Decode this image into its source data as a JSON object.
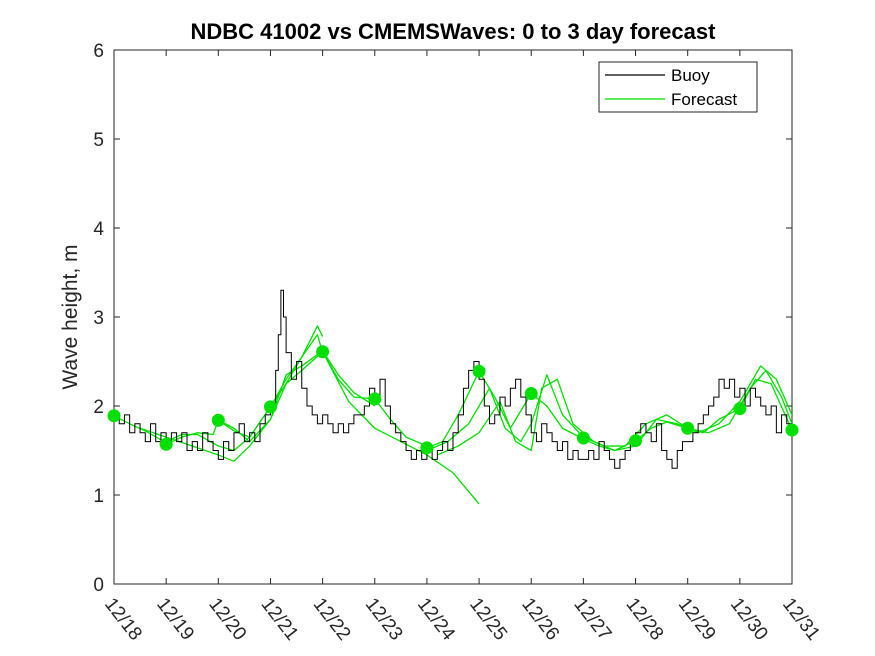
{
  "chart_data": {
    "type": "line",
    "title": "NDBC 41002 vs CMEMSWaves: 0 to 3 day forecast",
    "xlabel": "",
    "ylabel": "Wave height, m",
    "xlim": [
      0,
      13
    ],
    "ylim": [
      0,
      6
    ],
    "grid": false,
    "legend_position": "top-right",
    "x_tick_labels": [
      "12/18",
      "12/19",
      "12/20",
      "12/21",
      "12/22",
      "12/23",
      "12/24",
      "12/25",
      "12/26",
      "12/27",
      "12/28",
      "12/29",
      "12/30",
      "12/31"
    ],
    "y_ticks": [
      0,
      1,
      2,
      3,
      4,
      5,
      6
    ],
    "colors": {
      "buoy": "#000000",
      "forecast": "#00e000",
      "markers": "#00e000",
      "axes": "#262626"
    },
    "legend": [
      {
        "name": "Buoy",
        "color": "#000000"
      },
      {
        "name": "Forecast",
        "color": "#00e000"
      }
    ],
    "series": [
      {
        "name": "Buoy",
        "x": [
          0.0,
          0.1,
          0.2,
          0.3,
          0.4,
          0.5,
          0.6,
          0.7,
          0.8,
          0.9,
          1.0,
          1.1,
          1.2,
          1.3,
          1.4,
          1.5,
          1.6,
          1.7,
          1.8,
          1.9,
          2.0,
          2.1,
          2.2,
          2.3,
          2.4,
          2.5,
          2.6,
          2.7,
          2.8,
          2.9,
          3.0,
          3.1,
          3.15,
          3.2,
          3.25,
          3.3,
          3.4,
          3.5,
          3.6,
          3.7,
          3.8,
          3.9,
          4.0,
          4.1,
          4.2,
          4.3,
          4.4,
          4.5,
          4.6,
          4.7,
          4.8,
          4.9,
          5.0,
          5.1,
          5.2,
          5.3,
          5.4,
          5.5,
          5.6,
          5.7,
          5.8,
          5.9,
          6.0,
          6.1,
          6.2,
          6.3,
          6.4,
          6.5,
          6.6,
          6.7,
          6.8,
          6.9,
          7.0,
          7.1,
          7.2,
          7.3,
          7.4,
          7.5,
          7.6,
          7.7,
          7.8,
          7.9,
          8.0,
          8.1,
          8.2,
          8.3,
          8.4,
          8.5,
          8.6,
          8.7,
          8.8,
          8.9,
          9.0,
          9.1,
          9.2,
          9.3,
          9.4,
          9.5,
          9.6,
          9.7,
          9.8,
          9.9,
          10.0,
          10.1,
          10.2,
          10.3,
          10.4,
          10.5,
          10.6,
          10.7,
          10.8,
          10.9,
          11.0,
          11.1,
          11.2,
          11.3,
          11.4,
          11.5,
          11.6,
          11.7,
          11.8,
          11.9,
          12.0,
          12.1,
          12.2,
          12.3,
          12.4,
          12.5,
          12.6,
          12.7,
          12.8,
          12.9,
          13.0
        ],
        "values": [
          1.9,
          1.8,
          1.9,
          1.7,
          1.8,
          1.7,
          1.6,
          1.8,
          1.6,
          1.7,
          1.6,
          1.7,
          1.6,
          1.7,
          1.5,
          1.6,
          1.5,
          1.7,
          1.6,
          1.5,
          1.4,
          1.6,
          1.5,
          1.7,
          1.8,
          1.6,
          1.7,
          1.6,
          1.8,
          1.9,
          2.0,
          2.4,
          2.8,
          3.3,
          3.0,
          2.6,
          2.3,
          2.5,
          2.2,
          2.0,
          1.9,
          1.8,
          1.9,
          1.8,
          1.7,
          1.8,
          1.7,
          1.8,
          1.9,
          1.9,
          2.0,
          2.2,
          2.1,
          2.3,
          2.0,
          1.8,
          1.7,
          1.6,
          1.5,
          1.4,
          1.5,
          1.4,
          1.5,
          1.4,
          1.5,
          1.6,
          1.5,
          1.7,
          1.9,
          2.2,
          2.4,
          2.5,
          2.3,
          2.0,
          1.8,
          1.9,
          2.1,
          2.0,
          2.2,
          2.3,
          2.1,
          1.9,
          1.7,
          1.6,
          1.8,
          1.7,
          1.6,
          1.5,
          1.6,
          1.4,
          1.5,
          1.4,
          1.4,
          1.5,
          1.4,
          1.6,
          1.5,
          1.4,
          1.3,
          1.4,
          1.5,
          1.6,
          1.7,
          1.8,
          1.7,
          1.6,
          1.8,
          1.5,
          1.4,
          1.3,
          1.5,
          1.6,
          1.6,
          1.7,
          1.8,
          1.9,
          2.0,
          2.1,
          2.3,
          2.2,
          2.3,
          2.1,
          2.2,
          2.0,
          2.2,
          2.1,
          2.0,
          1.9,
          2.0,
          1.7,
          1.9,
          1.8,
          1.7
        ]
      },
      {
        "name": "Forecast",
        "runs": [
          {
            "x": [
              0.0,
              0.3,
              0.6,
              0.9,
              1.0,
              1.3,
              1.6,
              2.0,
              2.3,
              2.6,
              3.0,
              3.3,
              3.6,
              3.9,
              4.0
            ],
            "values": [
              1.89,
              1.8,
              1.72,
              1.62,
              1.6,
              1.68,
              1.68,
              1.55,
              1.5,
              1.65,
              1.99,
              2.3,
              2.55,
              2.8,
              2.6
            ]
          },
          {
            "x": [
              1.0,
              1.3,
              1.6,
              1.9,
              2.0,
              2.3,
              2.6,
              3.0,
              3.3,
              3.6,
              4.0,
              4.3,
              4.6,
              5.0
            ],
            "values": [
              1.57,
              1.65,
              1.7,
              1.68,
              1.84,
              1.75,
              1.6,
              1.85,
              2.35,
              2.45,
              2.62,
              2.35,
              2.15,
              2.0
            ]
          },
          {
            "x": [
              2.0,
              2.3,
              2.6,
              3.0,
              3.3,
              3.6,
              4.0,
              4.3,
              4.6,
              5.0,
              5.3,
              5.6,
              6.0
            ],
            "values": [
              1.84,
              1.72,
              1.65,
              1.99,
              2.25,
              2.4,
              2.61,
              2.3,
              2.1,
              2.08,
              1.85,
              1.65,
              1.55
            ]
          },
          {
            "x": [
              0.5,
              1.0,
              1.5,
              2.0,
              2.3,
              2.6,
              3.0,
              3.3,
              3.6,
              3.9,
              4.0
            ],
            "values": [
              1.75,
              1.65,
              1.55,
              1.45,
              1.38,
              1.55,
              1.85,
              2.25,
              2.55,
              2.9,
              2.78
            ]
          },
          {
            "x": [
              4.0,
              4.5,
              5.0,
              5.5,
              6.0,
              6.5,
              7.0
            ],
            "values": [
              2.61,
              2.05,
              1.75,
              1.6,
              1.45,
              1.25,
              0.9
            ]
          },
          {
            "x": [
              6.0,
              6.3,
              6.6,
              7.0,
              7.3,
              7.6,
              8.0,
              8.3,
              8.6,
              9.0,
              9.3,
              9.6,
              10.0,
              10.3,
              10.6,
              11.0,
              11.3,
              11.6,
              12.0,
              12.3,
              12.6,
              13.0
            ],
            "values": [
              1.53,
              1.6,
              1.9,
              2.39,
              2.1,
              1.75,
              2.14,
              2.0,
              1.75,
              1.63,
              1.55,
              1.5,
              1.61,
              1.75,
              1.82,
              1.75,
              1.7,
              1.85,
              1.97,
              2.3,
              2.25,
              1.73
            ]
          },
          {
            "x": [
              6.0,
              6.4,
              6.8,
              7.2,
              7.5,
              7.8,
              8.0,
              8.3,
              8.6,
              9.0,
              9.4,
              9.8,
              10.2,
              10.6,
              11.0,
              11.4,
              11.8,
              12.2,
              12.5,
              12.8,
              13.0
            ],
            "values": [
              1.5,
              1.6,
              1.8,
              2.2,
              1.75,
              1.6,
              1.8,
              2.35,
              1.9,
              1.65,
              1.55,
              1.55,
              1.8,
              1.9,
              1.75,
              1.7,
              1.8,
              2.2,
              2.4,
              2.1,
              1.8
            ]
          },
          {
            "x": [
              6.2,
              6.6,
              7.0,
              7.4,
              7.7,
              8.0,
              8.2,
              8.5,
              8.8,
              9.2,
              9.6,
              10.0,
              10.4,
              10.8,
              11.2,
              11.6,
              12.0,
              12.4,
              12.7,
              13.0
            ],
            "values": [
              1.45,
              1.55,
              1.7,
              2.05,
              1.6,
              1.5,
              2.2,
              2.3,
              1.8,
              1.6,
              1.5,
              1.55,
              1.85,
              1.8,
              1.7,
              1.8,
              2.05,
              2.45,
              2.3,
              1.9
            ]
          }
        ]
      },
      {
        "name": "Forecast init markers",
        "x": [
          0,
          1,
          2,
          3,
          4,
          5,
          6,
          7,
          8,
          9,
          10,
          11,
          12,
          13
        ],
        "values": [
          1.89,
          1.57,
          1.84,
          1.99,
          2.61,
          2.08,
          1.53,
          2.39,
          2.14,
          1.64,
          1.61,
          1.75,
          1.97,
          1.73
        ]
      }
    ]
  }
}
